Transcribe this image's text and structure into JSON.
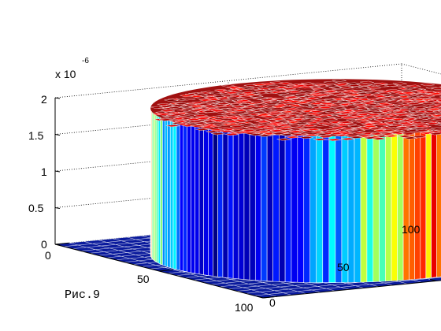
{
  "chart_data": {
    "type": "surface",
    "title": "",
    "xlabel": "",
    "ylabel": "",
    "zlabel": "",
    "x_ticks": [
      "0",
      "50",
      "100"
    ],
    "y_ticks": [
      "0",
      "50",
      "100"
    ],
    "z_ticks": [
      "0",
      "0.5",
      "1",
      "1.5",
      "2"
    ],
    "z_multiplier": "x 10",
    "z_exponent": "-6",
    "xlim": [
      0,
      100
    ],
    "ylim": [
      0,
      100
    ],
    "zlim": [
      0,
      2e-06
    ],
    "shape": "cylinder",
    "cylinder_center": [
      50,
      50
    ],
    "cylinder_radius": 45,
    "plateau_height": 2e-06,
    "base_height": 0,
    "grid": true,
    "box": true,
    "colormap": "jet",
    "colors": {
      "low": "#0a1a9c",
      "high": "#b01010",
      "edge": "#ffffff"
    }
  },
  "caption": "Рис.9"
}
